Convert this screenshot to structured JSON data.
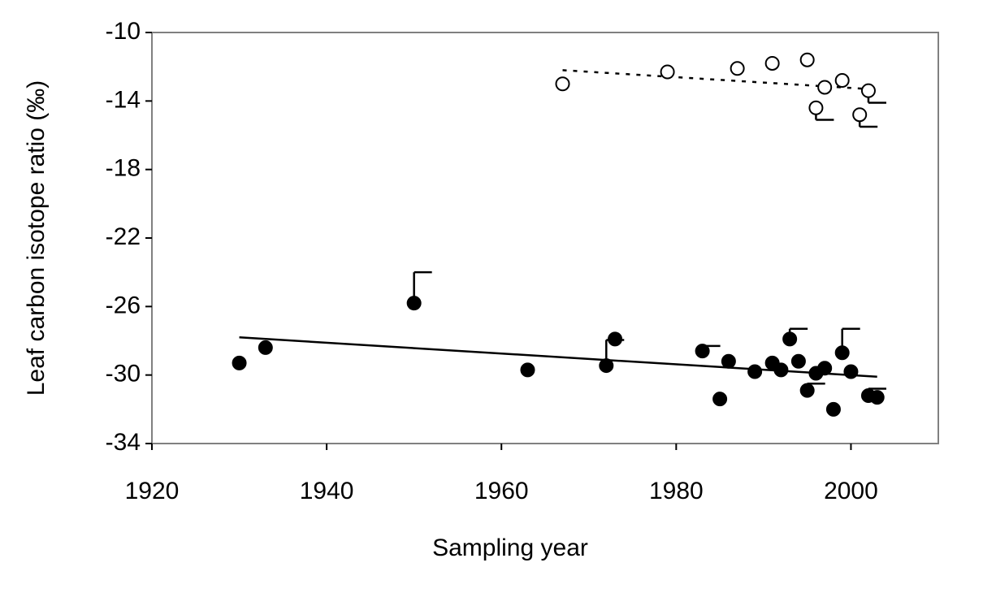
{
  "chart_data": {
    "type": "scatter",
    "x_label": "Sampling year",
    "y_label": "Leaf carbon isotope ratio (‰)",
    "xlim": [
      1920,
      2010
    ],
    "xticks": [
      1920,
      1940,
      1960,
      1980,
      2000
    ],
    "ylim": [
      -34,
      -10
    ],
    "yticks": [
      -10,
      -14,
      -18,
      -22,
      -26,
      -30,
      -34
    ],
    "series": [
      {
        "color": "#000000",
        "marker_fill": "#000000",
        "error_direction": "up",
        "x": [
          1930,
          1933,
          1950,
          1963,
          1972,
          1973,
          1983,
          1986,
          1985,
          1989,
          1991,
          1992,
          1993,
          1994,
          1995,
          1996,
          1997,
          1998,
          1999,
          2000,
          2002,
          2003
        ],
        "values": [
          -29.3,
          -28.4,
          -25.8,
          -29.7,
          -29.45,
          -27.9,
          -28.6,
          -29.2,
          -31.4,
          -29.8,
          -29.3,
          -29.7,
          -27.9,
          -29.2,
          -30.9,
          -29.9,
          -29.6,
          -32.0,
          -28.7,
          -29.8,
          -31.2,
          -31.3
        ],
        "errors": [
          null,
          null,
          1.8,
          null,
          1.5,
          null,
          0.3,
          null,
          null,
          null,
          null,
          null,
          0.6,
          null,
          0.4,
          null,
          null,
          null,
          1.4,
          null,
          0.4,
          null
        ],
        "trendline": {
          "x": [
            1930,
            2003
          ],
          "values": [
            -27.8,
            -30.1
          ],
          "dash": "solid"
        }
      },
      {
        "color": "#000000",
        "marker_fill": "#ffffff",
        "error_direction": "down",
        "x": [
          1967,
          1979,
          1987,
          1991,
          1995,
          1996,
          1997,
          1999,
          2001,
          2002
        ],
        "values": [
          -13.0,
          -12.3,
          -12.1,
          -11.8,
          -11.6,
          -14.4,
          -13.2,
          -12.8,
          -14.8,
          -13.4
        ],
        "errors": [
          null,
          null,
          null,
          null,
          null,
          0.7,
          null,
          null,
          0.7,
          0.7
        ],
        "trendline": {
          "x": [
            1967,
            2002
          ],
          "values": [
            -12.2,
            -13.3
          ],
          "dash": "dotted"
        }
      }
    ]
  }
}
